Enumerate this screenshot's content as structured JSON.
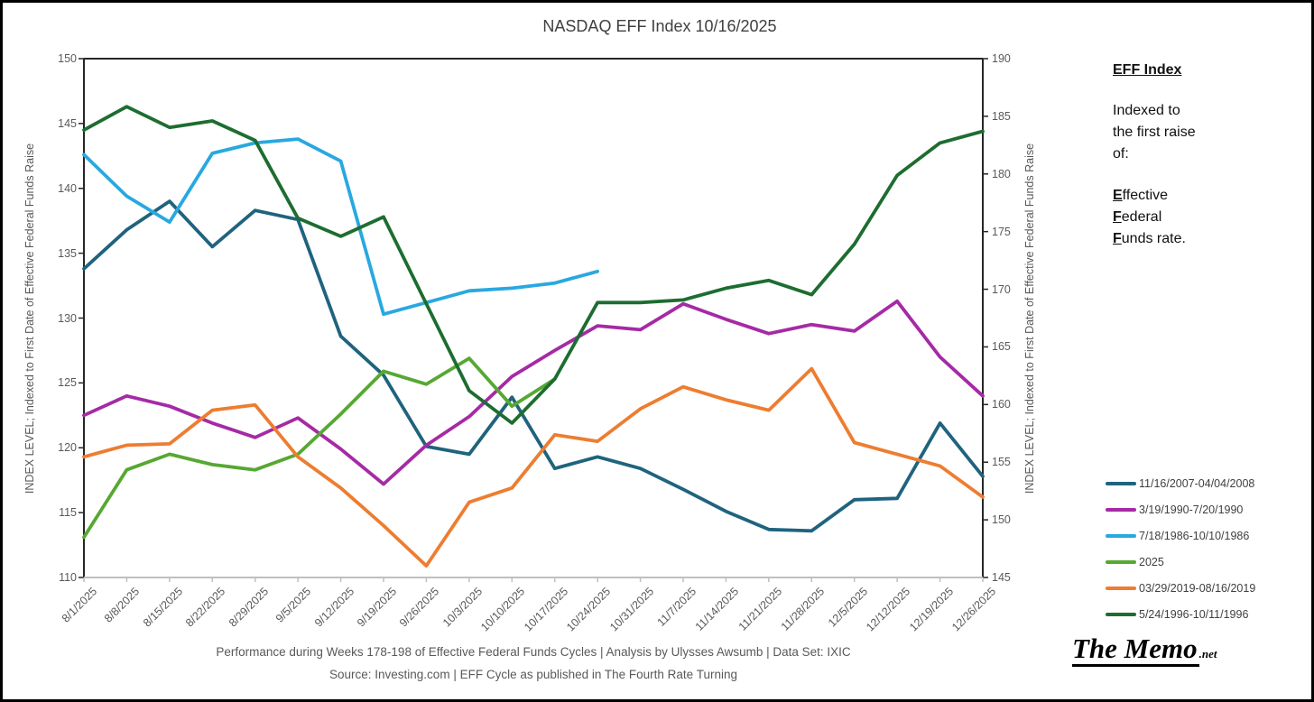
{
  "title": "NASDAQ EFF Index 10/16/2025",
  "y_axis_left": {
    "title": "INDEX LEVEL; Indexed to First Date of Effective Federal Funds Raise",
    "min": 110,
    "max": 150,
    "ticks": [
      150,
      145,
      140,
      135,
      130,
      125,
      120,
      115,
      110
    ]
  },
  "y_axis_right": {
    "title": "INDEX LEVEL; Indexed to First Date of Effective Federal Funds Raise",
    "min": 145,
    "max": 190,
    "ticks": [
      190,
      185,
      180,
      175,
      170,
      165,
      160,
      155,
      150,
      145
    ]
  },
  "chart_data": {
    "type": "line",
    "x": [
      "8/1/2025",
      "8/8/2025",
      "8/15/2025",
      "8/22/2025",
      "8/29/2025",
      "9/5/2025",
      "9/12/2025",
      "9/19/2025",
      "9/26/2025",
      "10/3/2025",
      "10/10/2025",
      "10/17/2025",
      "10/24/2025",
      "10/31/2025",
      "11/7/2025",
      "11/14/2025",
      "11/21/2025",
      "11/28/2025",
      "12/5/2025",
      "12/12/2025",
      "12/19/2025",
      "12/26/2025"
    ],
    "xlabel": "",
    "ylabel_left": "INDEX LEVEL; Indexed to First Date of Effective Federal Funds Raise",
    "ylim_left": [
      110,
      150
    ],
    "ylim_right": [
      145,
      190
    ],
    "grid": false,
    "legend_position": "right",
    "series": [
      {
        "name": "11/16/2007-04/04/2008",
        "color": "#1F637E",
        "values": [
          133.8,
          136.8,
          139.0,
          135.5,
          138.3,
          137.6,
          128.6,
          125.6,
          120.1,
          119.5,
          123.9,
          118.4,
          119.3,
          118.4,
          116.8,
          115.1,
          113.7,
          113.6,
          116.0,
          116.1,
          121.9,
          117.8
        ]
      },
      {
        "name": "3/19/1990-7/20/1990",
        "color": "#A52AA5",
        "values": [
          122.5,
          124.0,
          123.2,
          121.9,
          120.8,
          122.3,
          119.9,
          117.2,
          120.2,
          122.4,
          125.5,
          127.5,
          129.4,
          129.1,
          131.1,
          129.9,
          128.8,
          129.5,
          129.0,
          131.3,
          127.0,
          124.0
        ]
      },
      {
        "name": "7/18/1986-10/10/1986",
        "color": "#29A8E0",
        "values": [
          142.6,
          139.4,
          137.4,
          142.7,
          143.5,
          143.8,
          142.1,
          130.3,
          131.2,
          132.1,
          132.3,
          132.7,
          133.6
        ]
      },
      {
        "name": "2025",
        "color": "#56A832",
        "values": [
          113.1,
          118.3,
          119.5,
          118.7,
          118.3,
          119.5,
          122.6,
          125.9,
          124.9,
          126.9,
          123.2,
          125.3
        ]
      },
      {
        "name": "03/29/2019-08/16/2019",
        "color": "#ED7D31",
        "values": [
          119.3,
          120.2,
          120.3,
          122.9,
          123.3,
          119.3,
          116.9,
          114.0,
          110.9,
          115.8,
          116.9,
          121.0,
          120.5,
          123.0,
          124.7,
          123.7,
          122.9,
          126.1,
          120.4,
          119.5,
          118.6,
          116.2
        ]
      },
      {
        "name": "5/24/1996-10/11/1996",
        "color": "#1D6D30",
        "values": [
          144.5,
          146.3,
          144.7,
          145.2,
          143.7,
          137.7,
          136.3,
          137.8,
          131.1,
          124.4,
          121.9,
          125.3,
          131.2,
          131.2,
          131.4,
          132.3,
          132.9,
          131.8,
          135.7,
          141.0,
          143.5,
          144.4
        ]
      }
    ]
  },
  "side_note": {
    "title": "EFF Index",
    "intro_lines": [
      "Indexed to",
      "the first raise",
      "of:"
    ],
    "eff_lines": [
      {
        "lead": "E",
        "rest": "ffective"
      },
      {
        "lead": "F",
        "rest": "ederal"
      },
      {
        "lead": "F",
        "rest": "unds rate."
      }
    ]
  },
  "caption": {
    "line1": "Performance during Weeks 178-198 of Effective Federal Funds Cycles  | Analysis  by Ulysses Awsumb | Data Set: IXIC",
    "line2": "Source: Investing.com | EFF Cycle as published in The Fourth Rate Turning"
  },
  "logo": {
    "main": "The Memo",
    "suffix": ".net"
  }
}
